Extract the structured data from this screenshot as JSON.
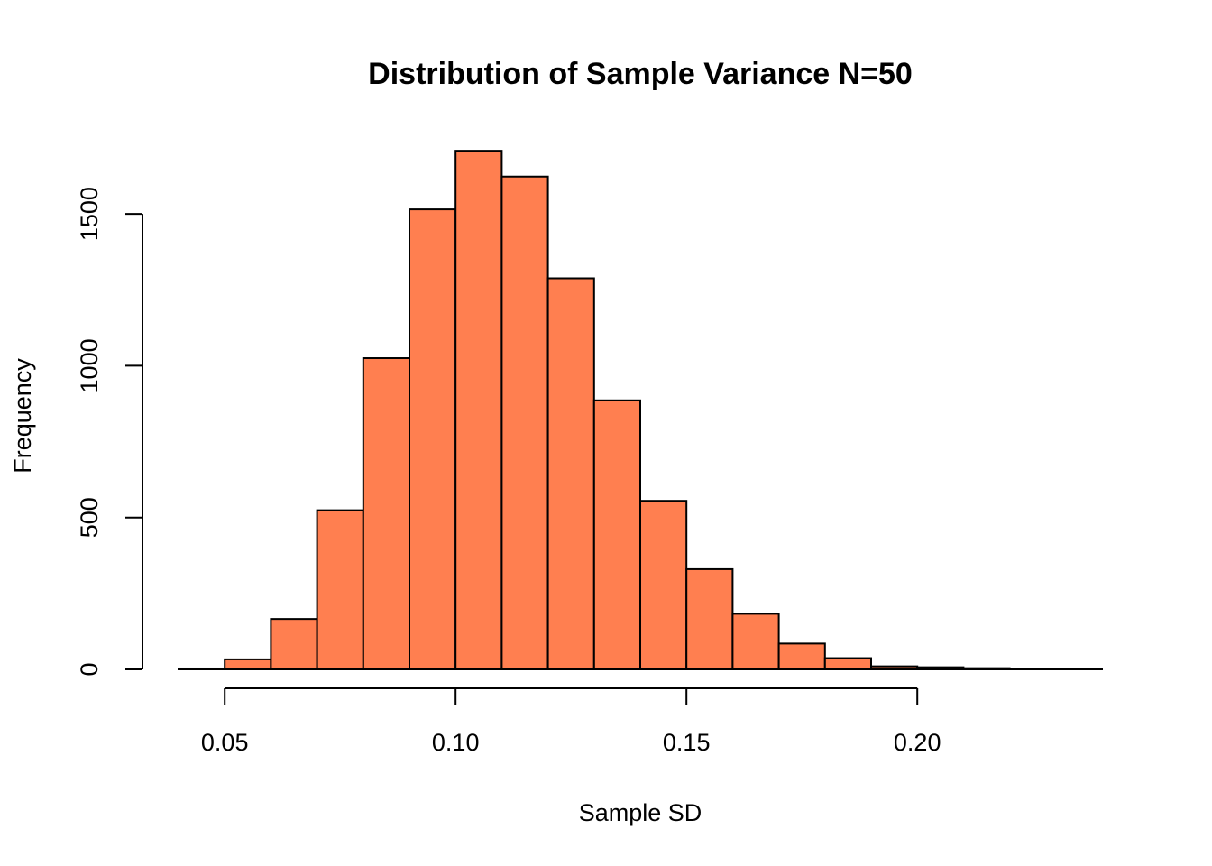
{
  "chart_data": {
    "type": "bar",
    "title": "Distribution of Sample Variance N=50",
    "xlabel": "Sample SD",
    "ylabel": "Frequency",
    "bin_edges": [
      0.04,
      0.05,
      0.06,
      0.07,
      0.08,
      0.09,
      0.1,
      0.11,
      0.12,
      0.13,
      0.14,
      0.15,
      0.16,
      0.17,
      0.18,
      0.19,
      0.2,
      0.21,
      0.22,
      0.23,
      0.24
    ],
    "values": [
      3,
      33,
      166,
      524,
      1025,
      1515,
      1708,
      1623,
      1288,
      886,
      555,
      330,
      183,
      85,
      37,
      10,
      7,
      4,
      1,
      2
    ],
    "bar_color": "#ff7f50",
    "xlim": [
      0.04,
      0.24
    ],
    "ylim": [
      0,
      1750
    ],
    "x_ticks": [
      0.05,
      0.1,
      0.15,
      0.2
    ],
    "x_tick_labels": [
      "0.05",
      "0.10",
      "0.15",
      "0.20"
    ],
    "y_ticks": [
      0,
      500,
      1000,
      1500
    ],
    "y_tick_labels": [
      "0",
      "500",
      "1000",
      "1500"
    ]
  }
}
